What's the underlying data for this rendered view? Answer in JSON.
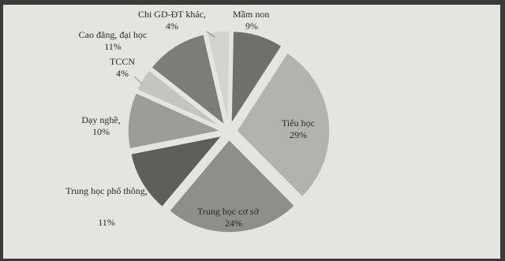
{
  "chart_data": {
    "type": "pie",
    "title": "",
    "exploded": true,
    "slices": [
      {
        "label": "Mầm non",
        "value": 9,
        "value_label": "9%",
        "color": "#6f6f6b"
      },
      {
        "label": "Tiểu học",
        "value": 29,
        "value_label": "29%",
        "color": "#b2b2ae"
      },
      {
        "label": "Trung học cơ sở",
        "value": 24,
        "value_label": "24%",
        "color": "#8e8e8a"
      },
      {
        "label": "Trung học phổ thông,",
        "value": 11,
        "value_label": "11%",
        "color": "#5e5e5a"
      },
      {
        "label": "Dạy nghề,",
        "value": 10,
        "value_label": "10%",
        "color": "#9c9c98"
      },
      {
        "label": "TCCN",
        "value": 4,
        "value_label": "4%",
        "color": "#c4c4c0"
      },
      {
        "label": "Cao đẳng, đại học",
        "value": 11,
        "value_label": "11%",
        "color": "#7c7c78"
      },
      {
        "label": "Chi GD-ĐT khác,",
        "value": 4,
        "value_label": "4%",
        "color": "#d2d2ce"
      }
    ]
  },
  "colors": {
    "background": "#3a3a38",
    "panel": "#e4e4e1",
    "text": "#2a2a2a"
  }
}
